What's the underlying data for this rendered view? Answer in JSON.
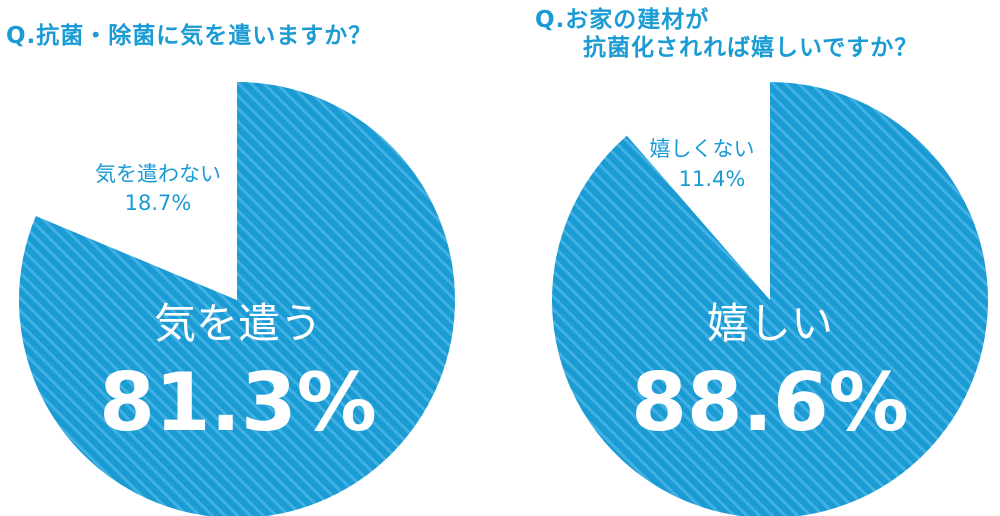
{
  "chart_data": [
    {
      "type": "pie",
      "title": "Q.抗菌・除菌に気を遣いますか？",
      "slices": [
        {
          "label": "気を遣う",
          "value": 81.3,
          "display": "81.3%",
          "fill": "hatched"
        },
        {
          "label": "気を遣わない",
          "value": 18.7,
          "display": "18.7%",
          "fill": "white"
        }
      ]
    },
    {
      "type": "pie",
      "title_lines": [
        "Q.お家の建材が",
        "抗菌化されれば嬉しいですか？"
      ],
      "slices": [
        {
          "label": "嬉しい",
          "value": 88.6,
          "display": "88.6%",
          "fill": "hatched"
        },
        {
          "label": "嬉しくない",
          "value": 11.4,
          "display": "11.4%",
          "fill": "white"
        }
      ]
    }
  ],
  "colors": {
    "accent": "#1b9bd4",
    "stripe": "#41b0e3",
    "background": "#ffffff"
  }
}
